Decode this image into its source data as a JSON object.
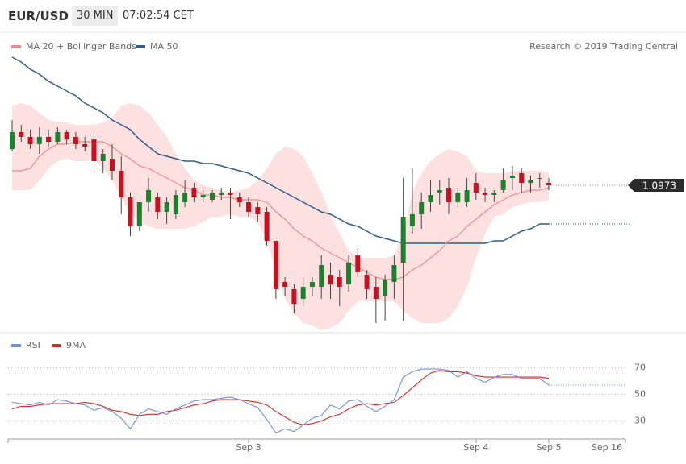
{
  "header": {
    "symbol": "EUR/USD",
    "interval": "30 MIN",
    "time": "07:02:54 CET"
  },
  "credit": "Research © 2019 Trading Central",
  "chart_data": [
    {
      "type": "candlestick",
      "categories": [
        null,
        null,
        null,
        null,
        null,
        null,
        null,
        null,
        null,
        null,
        null,
        null,
        null,
        null,
        null,
        null,
        null,
        null,
        null,
        null,
        null,
        null,
        null,
        null,
        null,
        null,
        "Sep 3",
        null,
        null,
        null,
        null,
        null,
        null,
        null,
        null,
        null,
        null,
        null,
        null,
        null,
        null,
        null,
        null,
        null,
        null,
        null,
        null,
        null,
        null,
        null,
        null,
        "Sep 4",
        null,
        null,
        null,
        null,
        null,
        null,
        null,
        "Sep 5"
      ],
      "future_labels": [
        "Sep 16"
      ],
      "open": [
        1.0988,
        1.0995,
        1.0993,
        1.099,
        1.0993,
        1.0991,
        1.0995,
        1.0993,
        1.099,
        1.0992,
        1.0983,
        1.0984,
        1.0979,
        1.0968,
        1.0956,
        1.0966,
        1.0968,
        1.0962,
        1.0961,
        1.0966,
        1.0972,
        1.0968,
        1.0967,
        1.0969,
        1.097,
        1.0968,
        1.0966,
        1.0964,
        1.0962,
        1.095,
        1.0933,
        1.093,
        1.0926,
        1.0931,
        1.0931,
        1.0936,
        1.0935,
        1.0932,
        1.0944,
        1.0936,
        1.0931,
        1.0927,
        1.0933,
        1.0941,
        1.0956,
        1.0961,
        1.0966,
        1.097,
        1.0972,
        1.0966,
        1.0966,
        1.0974,
        1.097,
        1.0969,
        1.0971,
        1.0976,
        1.0978,
        1.0974,
        1.0976,
        1.0974
      ],
      "high": [
        1.1,
        1.0998,
        1.0996,
        1.0997,
        1.0996,
        1.0997,
        1.0996,
        1.0995,
        1.0993,
        1.0994,
        1.0988,
        1.099,
        1.0985,
        1.097,
        1.0966,
        1.0976,
        1.097,
        1.0968,
        1.0971,
        1.0975,
        1.0974,
        1.0971,
        1.0971,
        1.0972,
        1.0972,
        1.097,
        1.0968,
        1.0966,
        1.0964,
        1.095,
        1.0935,
        1.0932,
        1.0935,
        1.0935,
        1.0944,
        1.0941,
        1.0938,
        1.0944,
        1.0947,
        1.0938,
        1.0935,
        1.0936,
        1.0944,
        1.0976,
        1.098,
        1.097,
        1.0975,
        1.0975,
        1.0976,
        1.0972,
        1.0976,
        1.0978,
        1.0972,
        1.0971,
        1.098,
        1.0981,
        1.098,
        1.0977,
        1.0978,
        1.0976
      ],
      "low": [
        1.0987,
        1.0991,
        1.0988,
        1.0986,
        1.0989,
        1.099,
        1.099,
        1.0988,
        1.0987,
        1.098,
        1.0978,
        1.0975,
        1.0961,
        1.0952,
        1.0954,
        1.0962,
        1.0959,
        1.0957,
        1.0959,
        1.0964,
        1.0966,
        1.0966,
        1.0966,
        1.0967,
        1.0959,
        1.0964,
        1.096,
        1.0958,
        1.0948,
        1.0926,
        1.0927,
        1.092,
        1.0923,
        1.0927,
        1.0926,
        1.0926,
        1.0923,
        1.0929,
        1.0935,
        1.0926,
        1.0916,
        1.0917,
        1.0926,
        1.0917,
        1.0953,
        1.0955,
        1.0962,
        1.0965,
        1.0961,
        1.0964,
        1.0964,
        1.0967,
        1.0966,
        1.0966,
        1.097,
        1.0971,
        1.097,
        1.097,
        1.0972,
        1.0971
      ],
      "close": [
        1.0995,
        1.0993,
        1.099,
        1.0993,
        1.0991,
        1.0995,
        1.0992,
        1.099,
        1.0989,
        1.0983,
        1.0986,
        1.0979,
        1.0968,
        1.0956,
        1.0966,
        1.0971,
        1.0962,
        1.0966,
        1.0969,
        1.097,
        1.0968,
        1.0969,
        1.097,
        1.097,
        1.0969,
        1.0966,
        1.0962,
        1.0961,
        1.095,
        1.093,
        1.0931,
        1.0924,
        1.0931,
        1.0933,
        1.094,
        1.0932,
        1.0931,
        1.0941,
        1.0937,
        1.093,
        1.0926,
        1.0934,
        1.094,
        1.096,
        1.0961,
        1.0966,
        1.0969,
        1.0971,
        1.0966,
        1.097,
        1.0971,
        1.097,
        1.0969,
        1.097,
        1.0975,
        1.0977,
        1.0974,
        1.0975,
        1.0976,
        1.0973
      ],
      "up_color": "#1e7f2e",
      "down_color": "#c8101e",
      "series": [
        {
          "name": "MA 20 + Bollinger Bands",
          "color": "#f08a8a",
          "band_color": "#fde1e1",
          "values": [
            1.0979,
            1.0979,
            1.098,
            1.0985,
            1.0988,
            1.099,
            1.099,
            1.0991,
            1.0991,
            1.0991,
            1.0991,
            1.0989,
            1.0986,
            1.0984,
            1.0981,
            1.098,
            1.0978,
            1.0976,
            1.0974,
            1.0972,
            1.0971,
            1.0969,
            1.0969,
            1.0968,
            1.0968,
            1.0967,
            1.0967,
            1.0967,
            1.0966,
            1.0962,
            1.0959,
            1.0955,
            1.0952,
            1.095,
            1.0947,
            1.0945,
            1.0943,
            1.0941,
            1.0939,
            1.0937,
            1.0935,
            1.0934,
            1.0934,
            1.0935,
            1.0938,
            1.094,
            1.0943,
            1.0946,
            1.095,
            1.0952,
            1.0956,
            1.0959,
            1.0962,
            1.0965,
            1.0967,
            1.0969,
            1.097,
            1.0971,
            1.0971,
            1.0972
          ],
          "upper": [
            1.1006,
            1.1007,
            1.1006,
            1.1003,
            1.1,
            1.0999,
            1.0999,
            1.0998,
            1.0998,
            1.0998,
            1.0999,
            1.1001,
            1.1006,
            1.1007,
            1.1006,
            1.1003,
            1.0998,
            1.0993,
            1.0986,
            1.098,
            1.0975,
            1.0973,
            1.0972,
            1.0971,
            1.097,
            1.0971,
            1.0972,
            1.0975,
            1.098,
            1.0986,
            1.0989,
            1.0988,
            1.0985,
            1.0978,
            1.097,
            1.0961,
            1.0953,
            1.0946,
            1.0943,
            1.0943,
            1.0943,
            1.0943,
            1.0944,
            1.0953,
            1.097,
            1.0978,
            1.0983,
            1.0986,
            1.0988,
            1.0987,
            1.0985,
            1.0979,
            1.0978,
            1.0978,
            1.0978,
            1.0979,
            1.0979,
            1.0979,
            1.0979,
            1.0978
          ],
          "lower": [
            1.0971,
            1.0971,
            1.0971,
            1.0975,
            1.098,
            1.0983,
            1.0984,
            1.0983,
            1.0983,
            1.0984,
            1.098,
            1.0975,
            1.0968,
            1.0961,
            1.0958,
            1.0956,
            1.0955,
            1.0955,
            1.0955,
            1.0955,
            1.0956,
            1.0958,
            1.096,
            1.096,
            1.0961,
            1.096,
            1.096,
            1.0958,
            1.095,
            1.0938,
            1.0926,
            1.092,
            1.0916,
            1.0915,
            1.0913,
            1.0914,
            1.0916,
            1.0921,
            1.0925,
            1.0925,
            1.0925,
            1.0925,
            1.0925,
            1.0921,
            1.0918,
            1.0916,
            1.0916,
            1.0916,
            1.0918,
            1.0923,
            1.0931,
            1.0943,
            1.0953,
            1.096,
            1.0961,
            1.0964,
            1.0965,
            1.0966,
            1.0966,
            1.0967
          ]
        },
        {
          "name": "MA 50",
          "color": "#2f5d8c",
          "values": [
            1.1026,
            1.1024,
            1.1021,
            1.1019,
            1.1016,
            1.1014,
            1.1012,
            1.101,
            1.1007,
            1.1005,
            1.1003,
            1.1,
            1.0998,
            1.0996,
            1.0992,
            1.0989,
            1.0986,
            1.0985,
            1.0984,
            1.0983,
            1.0983,
            1.0982,
            1.0982,
            1.0981,
            1.098,
            1.0979,
            1.0978,
            1.0976,
            1.0974,
            1.0972,
            1.097,
            1.0968,
            1.0966,
            1.0964,
            1.0962,
            1.0961,
            1.0959,
            1.0957,
            1.0956,
            1.0954,
            1.0952,
            1.0951,
            1.095,
            1.0949,
            1.0949,
            1.0949,
            1.0949,
            1.0949,
            1.0949,
            1.0949,
            1.0949,
            1.0949,
            1.0949,
            1.095,
            1.095,
            1.0952,
            1.0954,
            1.0955,
            1.0957,
            1.0957
          ]
        }
      ],
      "ylim": [
        1.0913,
        1.103
      ],
      "last_price": 1.0973
    },
    {
      "type": "line",
      "series": [
        {
          "name": "RSI",
          "color": "#6f8fe0",
          "values": [
            44,
            43,
            42,
            44,
            42,
            46,
            45,
            43,
            42,
            38,
            40,
            37,
            32,
            24,
            35,
            39,
            37,
            35,
            39,
            42,
            45,
            46,
            46,
            47,
            48,
            46,
            43,
            40,
            31,
            21,
            24,
            22,
            27,
            32,
            34,
            42,
            39,
            45,
            46,
            41,
            37,
            41,
            46,
            63,
            67,
            69,
            69,
            69,
            68,
            63,
            67,
            62,
            59,
            63,
            65,
            65,
            62,
            62,
            62,
            57
          ]
        },
        {
          "name": "9MA",
          "color": "#e3241f",
          "values": [
            39,
            41,
            41,
            42,
            43,
            43,
            43,
            43,
            44,
            43,
            41,
            38,
            37,
            35,
            34,
            35,
            35,
            37,
            38,
            40,
            42,
            43,
            45,
            46,
            46,
            46,
            45,
            44,
            42,
            37,
            33,
            29,
            27,
            28,
            30,
            33,
            35,
            39,
            42,
            43,
            42,
            43,
            44,
            49,
            55,
            61,
            66,
            68,
            67,
            67,
            66,
            64,
            63,
            63,
            63,
            63,
            63,
            63,
            63,
            62
          ]
        }
      ],
      "ylim": [
        20,
        80
      ],
      "yticks": [
        30,
        50,
        70
      ],
      "grid": true
    }
  ]
}
